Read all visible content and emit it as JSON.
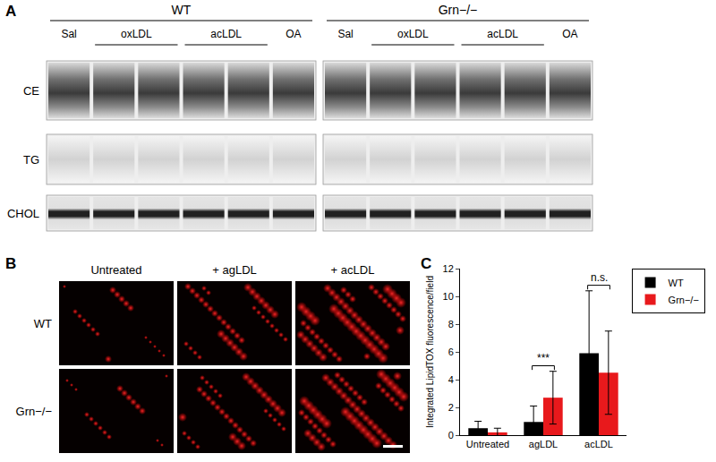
{
  "panel_labels": [
    "A",
    "B",
    "C"
  ],
  "panel_a": {
    "groups": [
      "WT",
      "Grn−/−"
    ],
    "lanes": [
      {
        "label": "Sal",
        "count": 1
      },
      {
        "label": "oxLDL",
        "count": 2
      },
      {
        "label": "acLDL",
        "count": 2
      },
      {
        "label": "OA",
        "count": 1
      }
    ],
    "rows": [
      "CE",
      "TG",
      "CHOL"
    ]
  },
  "panel_b": {
    "columns": [
      "Untreated",
      "+ agLDL",
      "+ acLDL"
    ],
    "rows": [
      "WT",
      "Grn−/−"
    ]
  },
  "chart_data": {
    "type": "bar",
    "categories": [
      "Untreated",
      "agLDL",
      "acLDL"
    ],
    "y_label": "Integrated LipidTOX fluorescence/field",
    "series": [
      {
        "name": "WT",
        "color": "#000000",
        "values": [
          0.5,
          0.95,
          5.9
        ],
        "errors": [
          0.5,
          1.15,
          4.5
        ]
      },
      {
        "name": "Grn−/−",
        "color": "#e8191c",
        "values": [
          0.2,
          2.7,
          4.5
        ],
        "errors": [
          0.3,
          1.9,
          3.0
        ]
      }
    ],
    "ylim": [
      0,
      12
    ],
    "yticks": [
      0,
      2,
      4,
      6,
      8,
      10,
      12
    ],
    "grid": false,
    "legend": "right",
    "annotations": [
      {
        "category": "agLDL",
        "text": "***"
      },
      {
        "category": "acLDL",
        "text": "n.s."
      }
    ]
  }
}
